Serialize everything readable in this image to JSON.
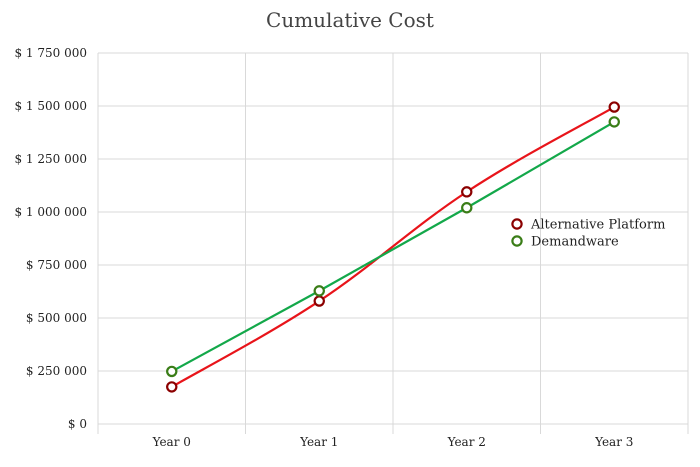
{
  "chart_data": {
    "type": "line",
    "title": "Cumulative Cost",
    "xlabel": "",
    "ylabel": "",
    "categories": [
      "Year 0",
      "Year 1",
      "Year 2",
      "Year 3"
    ],
    "y_ticks": [
      0,
      250000,
      500000,
      750000,
      1000000,
      1250000,
      1500000,
      1750000
    ],
    "y_tick_labels": [
      "$ 0",
      "$ 250 000",
      "$ 500 000",
      "$ 750 000",
      "$ 1 000 000",
      "$ 1 250 000",
      "$ 1 500 000",
      "$ 1 750 000"
    ],
    "ylim": [
      0,
      1750000
    ],
    "grid": true,
    "legend_position": "right",
    "series": [
      {
        "name": "Alternative Platform",
        "values": [
          175000,
          580000,
          1095000,
          1495000
        ],
        "color": "#e8141a",
        "marker": "#8b0000",
        "smooth": true
      },
      {
        "name": "Demandware",
        "values": [
          248000,
          628000,
          1020000,
          1425000
        ],
        "color": "#13a84a",
        "marker": "#3a7d17",
        "smooth": false
      }
    ]
  }
}
